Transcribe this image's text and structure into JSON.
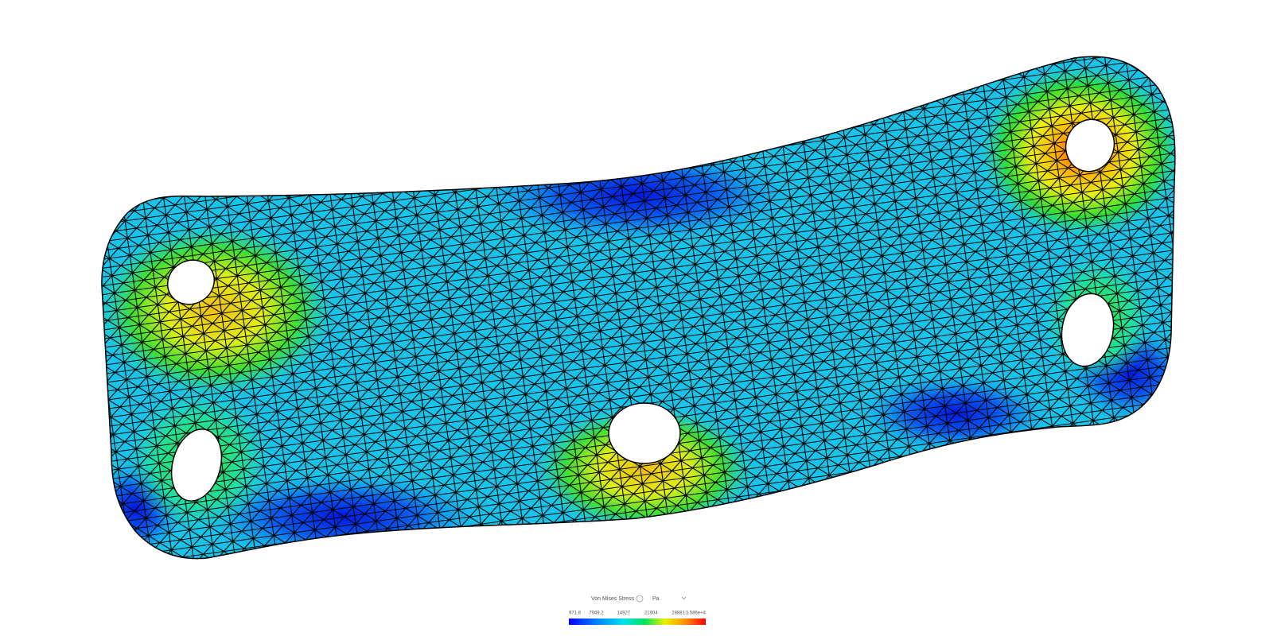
{
  "legend": {
    "title": "Von Mises Stress",
    "unit": "Pa",
    "ticks": [
      "971.8",
      "7949.2",
      "14927",
      "21904",
      "28881",
      "3.586e+4"
    ]
  }
}
